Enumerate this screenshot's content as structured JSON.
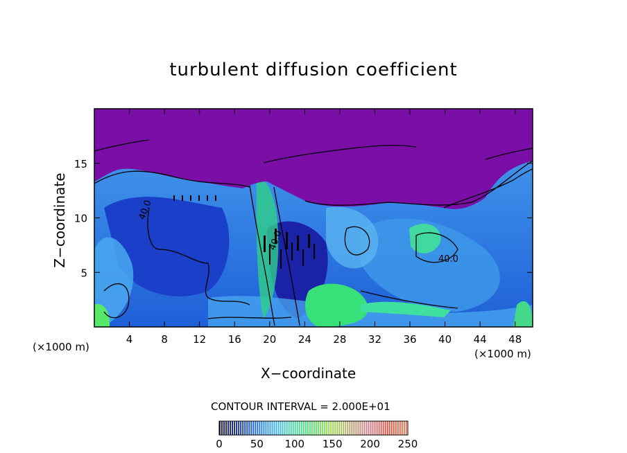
{
  "chart_data": {
    "type": "heatmap",
    "title": "turbulent diffusion coefficient",
    "xlabel": "X−coordinate",
    "ylabel": "Z−coordinate",
    "x_unit": "(×1000 m)",
    "z_unit": "(×1000 m)",
    "xlim": [
      0,
      50
    ],
    "ylim": [
      0,
      20
    ],
    "x_ticks": [
      4,
      8,
      12,
      16,
      20,
      24,
      28,
      32,
      36,
      40,
      44,
      48
    ],
    "y_ticks": [
      5,
      10,
      15
    ],
    "contour_interval_text": "CONTOUR INTERVAL = 2.000E+01",
    "contour_labels": [
      "40.0",
      "40.0",
      "40.0"
    ],
    "colorbar": {
      "min": 0,
      "max": 250,
      "ticks": [
        0,
        50,
        100,
        150,
        200,
        250
      ],
      "colors": [
        "#1b0a3a",
        "#0c2a9a",
        "#1c6fe0",
        "#3fb2e6",
        "#42d9a0",
        "#55e86a",
        "#9ee24a",
        "#b6a070",
        "#c87c8c",
        "#e0503a",
        "#f07a5a"
      ]
    },
    "colors": {
      "top_layer": "#7a0ea6",
      "background_field": "#1e5fd8",
      "deep_field": "#1a2fb8",
      "light_field": "#4aa3f0",
      "green_peak": "#38e07a"
    }
  }
}
